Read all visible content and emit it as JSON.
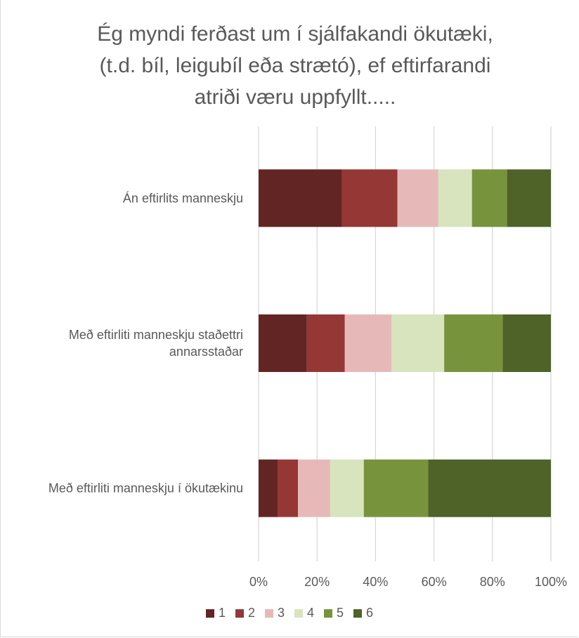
{
  "chart_data": {
    "type": "bar",
    "orientation": "horizontal",
    "stacked": "percent",
    "title_lines": [
      "Ég myndi ferðast um í sjálfakandi ökutæki,",
      "(t.d. bíl, leigubíl eða strætó), ef eftirfarandi",
      "atriði væru uppfyllt....."
    ],
    "categories": [
      "Án eftirlits manneskju",
      "Með eftirliti manneskju staðettri annarsstaðar",
      "Með eftirliti manneskju í ökutækinu"
    ],
    "category_label_lines": [
      [
        "Án eftirlits manneskju"
      ],
      [
        "Með eftirliti manneskju staðettri",
        "annarsstaðar"
      ],
      [
        "Með eftirliti manneskju í ökutækinu"
      ]
    ],
    "series": [
      {
        "name": "1",
        "color": "#632523",
        "values": [
          28.5,
          16.5,
          6.5
        ]
      },
      {
        "name": "2",
        "color": "#953735",
        "values": [
          19.0,
          13.0,
          7.0
        ]
      },
      {
        "name": "3",
        "color": "#e6b9b8",
        "values": [
          14.0,
          16.0,
          11.0
        ]
      },
      {
        "name": "4",
        "color": "#d7e4bd",
        "values": [
          11.5,
          18.0,
          11.5
        ]
      },
      {
        "name": "5",
        "color": "#77933c",
        "values": [
          12.0,
          20.0,
          22.0
        ]
      },
      {
        "name": "6",
        "color": "#4f6228",
        "values": [
          15.0,
          16.5,
          42.0
        ]
      }
    ],
    "xlim": [
      0,
      100
    ],
    "x_ticks": [
      "0%",
      "20%",
      "40%",
      "60%",
      "80%",
      "100%"
    ],
    "grid": "vertical",
    "legend_position": "bottom",
    "gridline_color": "#d9d9d9"
  }
}
